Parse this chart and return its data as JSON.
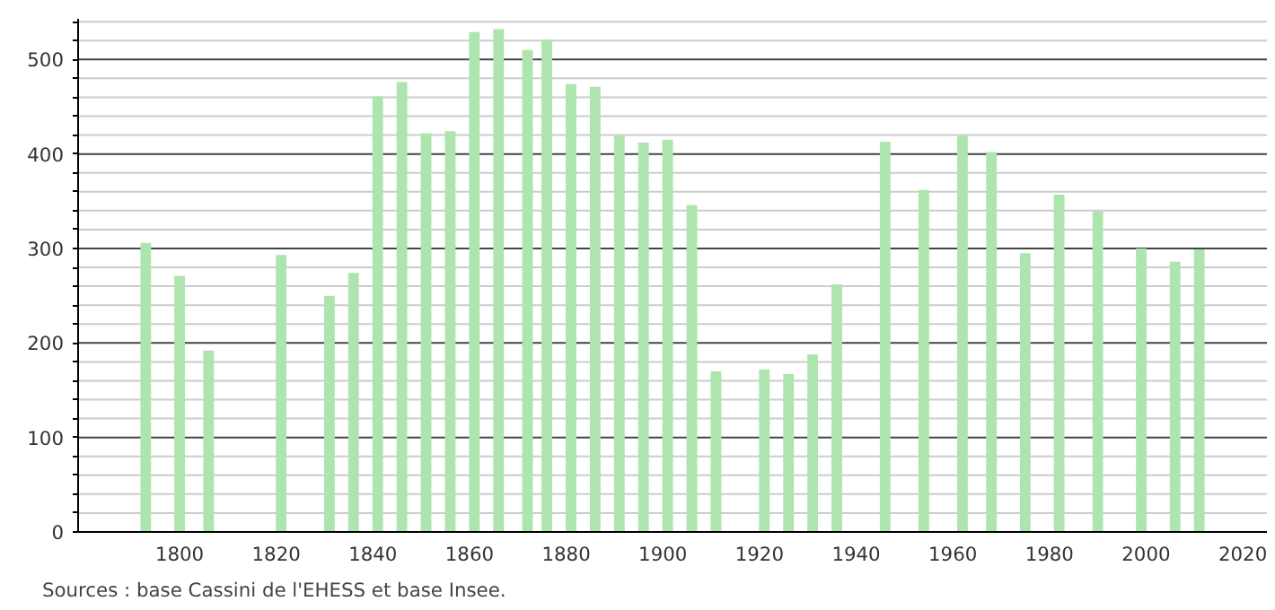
{
  "chart_data": {
    "type": "bar",
    "x": [
      1793,
      1800,
      1806,
      1821,
      1831,
      1836,
      1841,
      1846,
      1851,
      1856,
      1861,
      1866,
      1872,
      1876,
      1881,
      1886,
      1891,
      1896,
      1901,
      1906,
      1911,
      1921,
      1926,
      1931,
      1936,
      1946,
      1954,
      1962,
      1968,
      1975,
      1982,
      1990,
      1999,
      2006,
      2011
    ],
    "values": [
      306,
      271,
      192,
      293,
      250,
      274,
      461,
      476,
      422,
      424,
      529,
      532,
      510,
      521,
      474,
      471,
      419,
      412,
      415,
      346,
      170,
      172,
      167,
      188,
      262,
      413,
      362,
      419,
      402,
      295,
      357,
      339,
      300,
      286,
      299
    ],
    "color": "#aee4ae",
    "xlim": [
      1779,
      2025
    ],
    "xticks": [
      1800,
      1820,
      1840,
      1860,
      1880,
      1900,
      1920,
      1940,
      1960,
      1980,
      2000,
      2020
    ],
    "ylim": [
      0,
      543
    ],
    "yticks": [
      0,
      {
        "value": 20,
        "label": null
      },
      {
        "value": 40,
        "label": null
      },
      {
        "value": 60,
        "label": null
      },
      {
        "value": 80,
        "label": null
      },
      100,
      {
        "value": 120,
        "label": null
      },
      {
        "value": 140,
        "label": null
      },
      {
        "value": 160,
        "label": null
      },
      {
        "value": 180,
        "label": null
      },
      200,
      {
        "value": 220,
        "label": null
      },
      {
        "value": 240,
        "label": null
      },
      {
        "value": 260,
        "label": null
      },
      {
        "value": 280,
        "label": null
      },
      300,
      {
        "value": 320,
        "label": null
      },
      {
        "value": 340,
        "label": null
      },
      {
        "value": 360,
        "label": null
      },
      {
        "value": 380,
        "label": null
      },
      400,
      {
        "value": 420,
        "label": null
      },
      {
        "value": 440,
        "label": null
      },
      {
        "value": 460,
        "label": null
      },
      {
        "value": 480,
        "label": null
      },
      500,
      {
        "value": 520,
        "label": null
      },
      {
        "value": 540,
        "label": null
      }
    ],
    "grid": "y",
    "annotations": [
      "Sources : base Cassini de l'EHESS et base Insee."
    ]
  }
}
